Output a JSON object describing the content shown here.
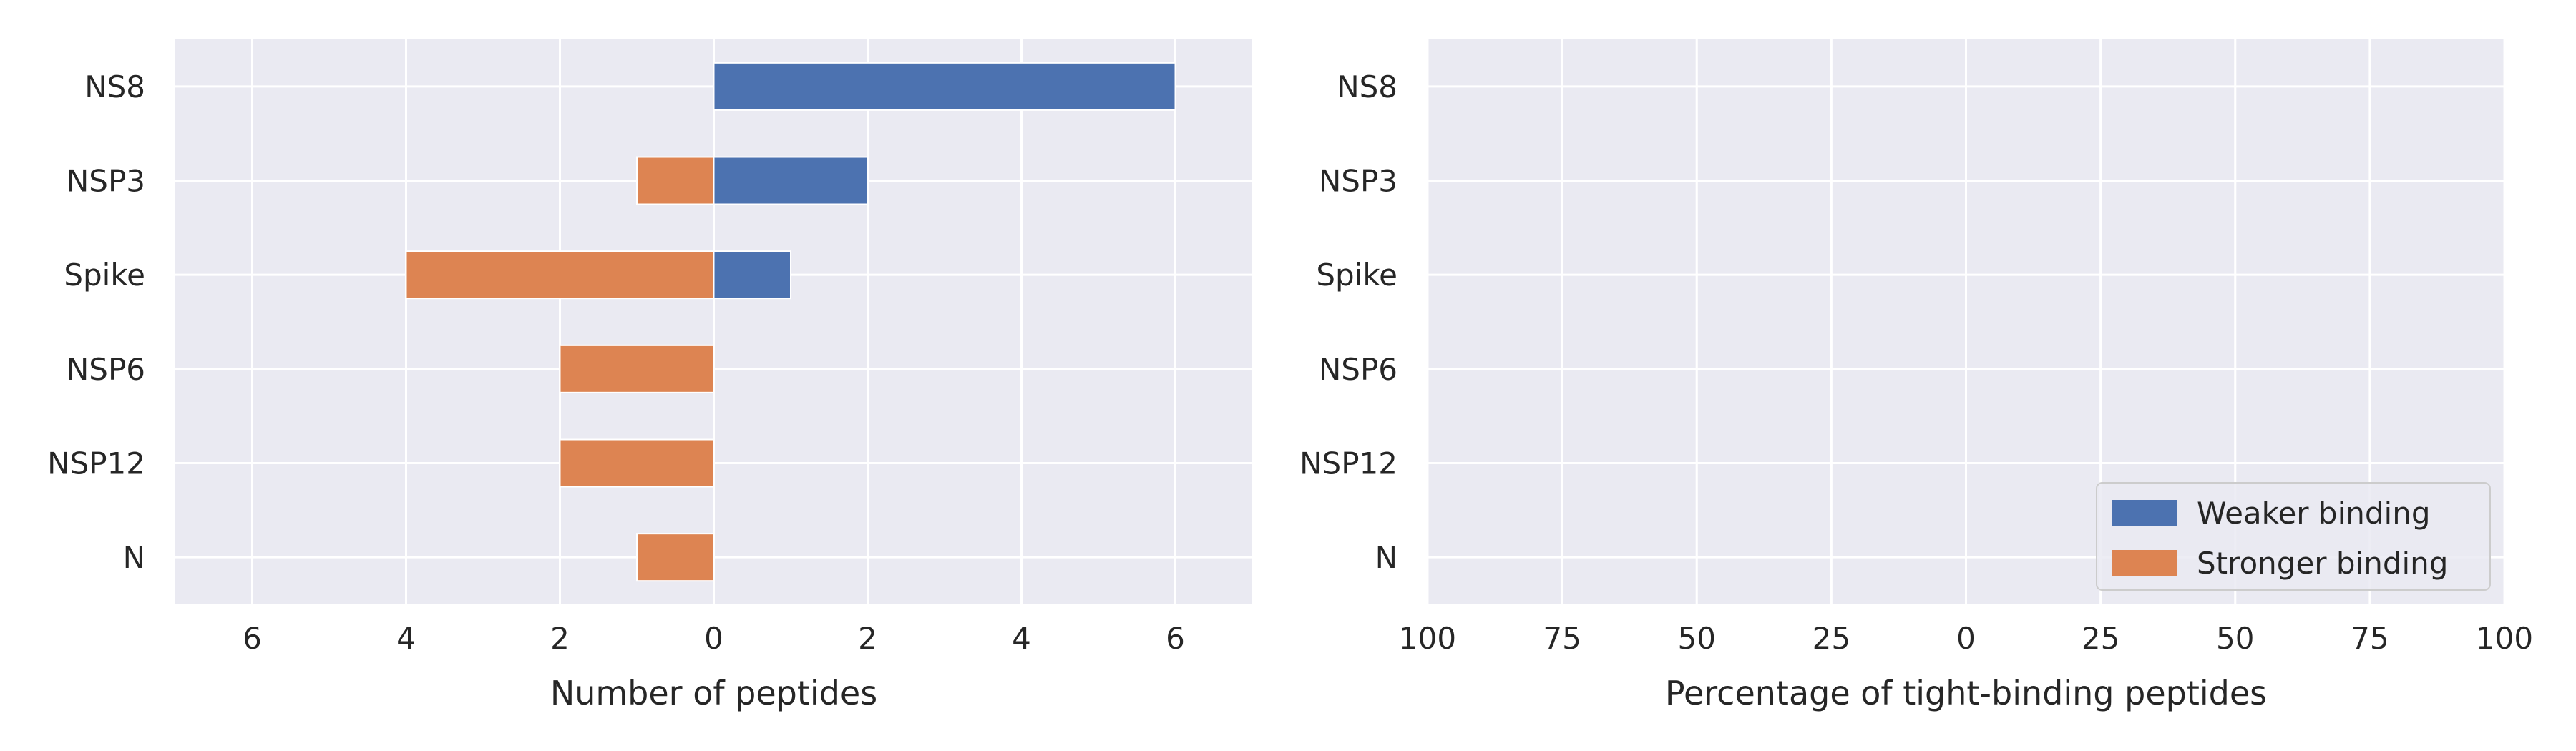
{
  "chart_data": [
    {
      "type": "bar",
      "orientation": "horizontal-diverging",
      "categories": [
        "NS8",
        "NSP3",
        "Spike",
        "NSP6",
        "NSP12",
        "N"
      ],
      "series": [
        {
          "name": "Weaker binding",
          "values": [
            6,
            2,
            1,
            0,
            0,
            0
          ],
          "direction": "right",
          "color": "#4c72b0"
        },
        {
          "name": "Stronger binding",
          "values": [
            0,
            1,
            4,
            2,
            2,
            1
          ],
          "direction": "left",
          "color": "#dd8452"
        }
      ],
      "xlabel": "Number of peptides",
      "xlim": [
        -7,
        7
      ],
      "xticks": [
        -6,
        -4,
        -2,
        0,
        2,
        4,
        6
      ],
      "xtick_labels": [
        "6",
        "4",
        "2",
        "0",
        "2",
        "4",
        "6"
      ],
      "grid": true
    },
    {
      "type": "bar",
      "orientation": "horizontal-diverging",
      "categories": [
        "NS8",
        "NSP3",
        "Spike",
        "NSP6",
        "NSP12",
        "N"
      ],
      "series": [
        {
          "name": "Weaker binding",
          "values": [
            0,
            0,
            0,
            0,
            0,
            0
          ],
          "direction": "right",
          "color": "#4c72b0"
        },
        {
          "name": "Stronger binding",
          "values": [
            0,
            0,
            0,
            0,
            0,
            0
          ],
          "direction": "left",
          "color": "#dd8452"
        }
      ],
      "xlabel": "Percentage of tight-binding peptides",
      "xlim": [
        -100,
        100
      ],
      "xticks": [
        -100,
        -75,
        -50,
        -25,
        0,
        25,
        50,
        75,
        100
      ],
      "xtick_labels": [
        "100",
        "75",
        "50",
        "25",
        "0",
        "25",
        "50",
        "75",
        "100"
      ],
      "grid": true,
      "legend": {
        "placement": "bottom-right",
        "entries": [
          {
            "label": "Weaker binding",
            "color": "#4c72b0"
          },
          {
            "label": "Stronger binding",
            "color": "#dd8452"
          }
        ]
      }
    }
  ],
  "style": {
    "panel_background": "#eaeaf2",
    "grid_color": "#ffffff",
    "text_color": "#262626"
  }
}
